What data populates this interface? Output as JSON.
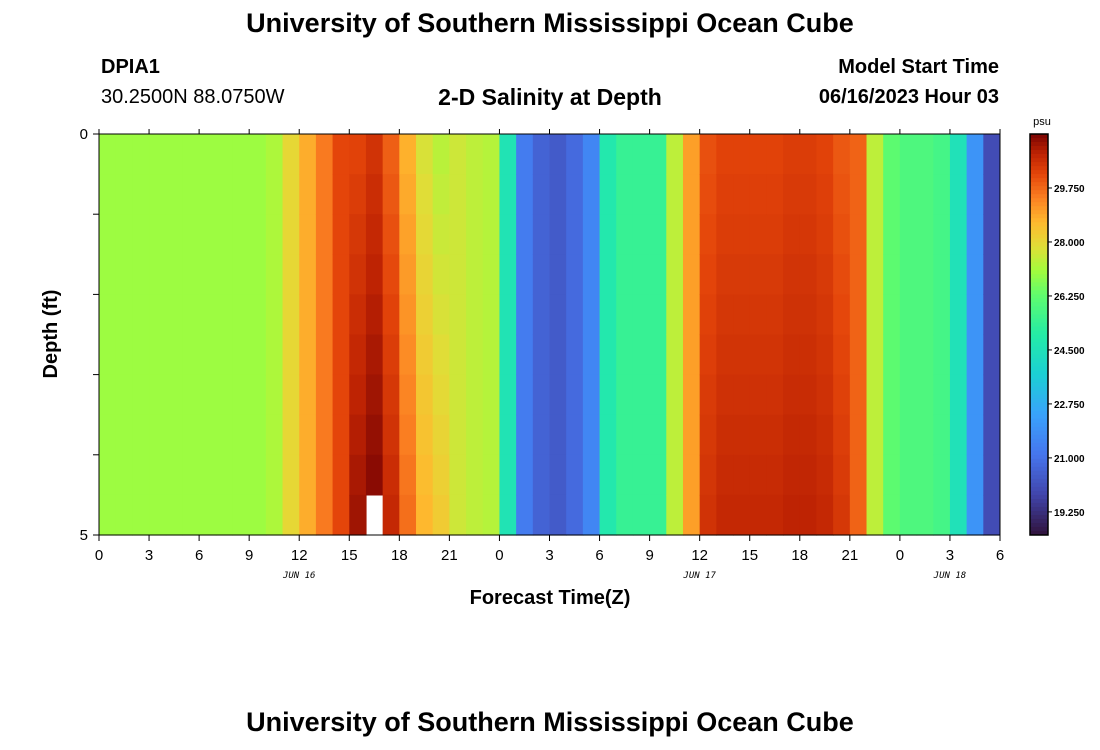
{
  "header": {
    "title": "University of Southern Mississippi Ocean Cube",
    "station_id": "DPIA1",
    "coordinates": "30.2500N  88.0750W",
    "model_start_label": "Model Start Time",
    "model_start_value": "06/16/2023 Hour 03"
  },
  "footer": {
    "title": "University of Southern Mississippi Ocean Cube"
  },
  "chart_data": {
    "type": "heatmap",
    "title": "2-D Salinity at Depth",
    "xlabel": "Forecast Time(Z)",
    "ylabel": "Depth (ft)",
    "x_range_hours": [
      0,
      54
    ],
    "y_range": [
      0,
      5
    ],
    "y_ticks": [
      "0",
      "5"
    ],
    "x_tick_labels": [
      "0",
      "3",
      "6",
      "9",
      "12",
      "15",
      "18",
      "21",
      "0",
      "3",
      "6",
      "9",
      "12",
      "15",
      "18",
      "21",
      "0",
      "3",
      "6"
    ],
    "date_labels": [
      {
        "text": "JUN 16",
        "hour": 12
      },
      {
        "text": "JUN 17",
        "hour": 36
      },
      {
        "text": "JUN 18",
        "hour": 51
      }
    ],
    "colorbar": {
      "unit": "psu",
      "min": 18.5,
      "max": 31.5,
      "ticks": [
        "29.750",
        "28.000",
        "26.250",
        "24.500",
        "22.750",
        "21.000",
        "19.250"
      ],
      "tick_values": [
        29.75,
        28.0,
        26.25,
        24.5,
        22.75,
        21.0,
        19.25
      ]
    },
    "hourly_salinity_profile": [
      27.0,
      27.0,
      27.0,
      27.0,
      27.0,
      27.0,
      27.0,
      27.0,
      27.0,
      27.0,
      27.2,
      28.0,
      28.8,
      29.5,
      30.2,
      30.7,
      31.0,
      30.3,
      29.2,
      28.2,
      27.8,
      27.6,
      27.4,
      27.3,
      24.6,
      21.3,
      20.6,
      20.4,
      20.8,
      21.6,
      24.8,
      25.4,
      25.4,
      25.4,
      27.4,
      29.0,
      30.3,
      30.5,
      30.5,
      30.5,
      30.5,
      30.6,
      30.6,
      30.5,
      30.2,
      29.8,
      27.4,
      26.2,
      25.9,
      25.9,
      25.7,
      24.5,
      22.0,
      20.0,
      19.8
    ],
    "missing_cell": {
      "hour": 16,
      "depth_ft": 4.5
    }
  }
}
